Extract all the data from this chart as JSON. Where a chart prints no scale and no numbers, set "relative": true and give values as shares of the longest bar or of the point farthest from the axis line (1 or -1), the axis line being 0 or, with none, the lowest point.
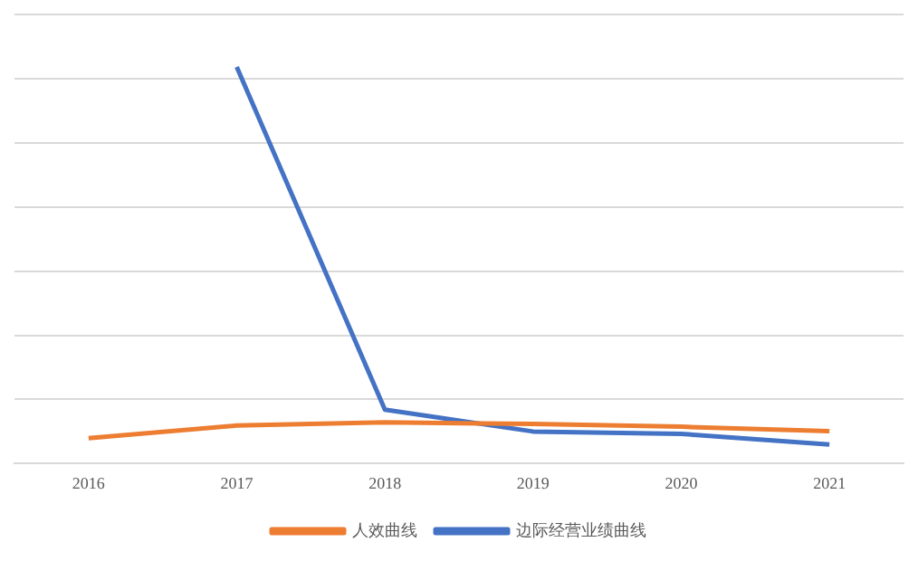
{
  "chart_data": {
    "type": "line",
    "relative": true,
    "categories": [
      "2016",
      "2017",
      "2018",
      "2019",
      "2020",
      "2021"
    ],
    "series": [
      {
        "name": "人效曲线",
        "color": "#ed7d31",
        "values": [
          0.064,
          0.096,
          0.104,
          0.1,
          0.093,
          0.082
        ]
      },
      {
        "name": "边际经营业绩曲线",
        "color": "#4472c4",
        "values": [
          null,
          1,
          0.136,
          0.081,
          0.075,
          0.048
        ]
      }
    ],
    "grid": "y",
    "legend": "bottom",
    "marker": "none",
    "line_style": "solid"
  }
}
